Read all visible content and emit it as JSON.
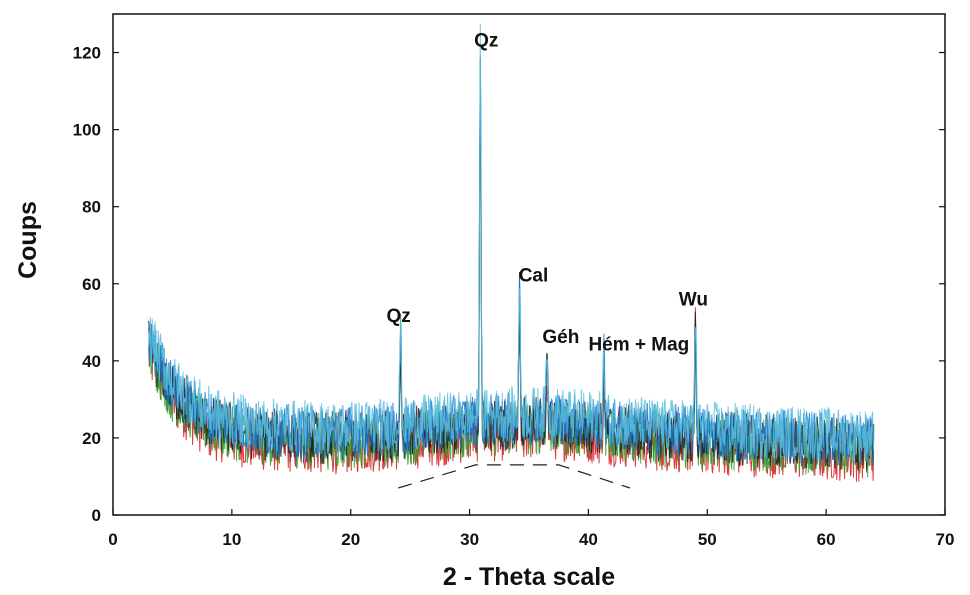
{
  "chart_data": {
    "type": "line",
    "xlabel": "2 - Theta scale",
    "ylabel": "Coups",
    "xlim": [
      0,
      70
    ],
    "ylim": [
      0,
      130
    ],
    "x_ticks": [
      0,
      10,
      20,
      30,
      40,
      50,
      60,
      70
    ],
    "y_ticks": [
      0,
      20,
      40,
      60,
      80,
      100,
      120
    ],
    "grid": false,
    "series_colors": [
      "#d7191c",
      "#2ca02c",
      "#1f1f1f",
      "#1f78d1",
      "#5bc0de"
    ],
    "x_range": [
      3,
      64
    ],
    "baseline_noise": [
      {
        "x": 3,
        "y": 44
      },
      {
        "x": 5,
        "y": 32
      },
      {
        "x": 8,
        "y": 24
      },
      {
        "x": 12,
        "y": 21
      },
      {
        "x": 18,
        "y": 20
      },
      {
        "x": 24,
        "y": 21
      },
      {
        "x": 30,
        "y": 23
      },
      {
        "x": 36,
        "y": 24
      },
      {
        "x": 40,
        "y": 23
      },
      {
        "x": 45,
        "y": 21
      },
      {
        "x": 50,
        "y": 20
      },
      {
        "x": 56,
        "y": 19
      },
      {
        "x": 64,
        "y": 18
      }
    ],
    "peaks": [
      {
        "x": 24.2,
        "y": 47,
        "label": "Qz"
      },
      {
        "x": 30.9,
        "y": 119,
        "label": "Qz"
      },
      {
        "x": 34.2,
        "y": 58,
        "label": "Cal"
      },
      {
        "x": 36.5,
        "y": 42,
        "label": "Géh"
      },
      {
        "x": 41.3,
        "y": 39,
        "label": "Hém + Mag"
      },
      {
        "x": 49.0,
        "y": 51,
        "label": "Wu"
      }
    ],
    "amorphous_hump": [
      {
        "x": 24,
        "y": 7
      },
      {
        "x": 30.5,
        "y": 13
      },
      {
        "x": 37.5,
        "y": 13
      },
      {
        "x": 43.5,
        "y": 7
      }
    ]
  }
}
